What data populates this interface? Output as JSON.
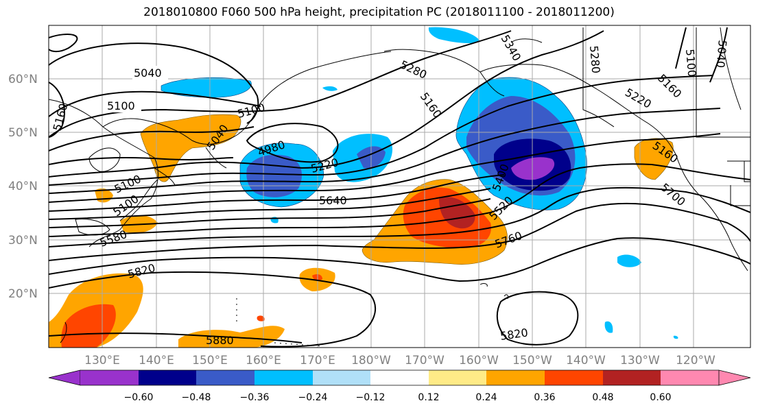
{
  "title": "2018010800 F060 500 hPa height, precipitation PC (2018011100 - 2018011200)",
  "map": {
    "lat_labels": [
      "60°N",
      "50°N",
      "40°N",
      "30°N",
      "20°N"
    ],
    "lon_labels": [
      "130°E",
      "140°E",
      "150°E",
      "160°E",
      "170°E",
      "180°W",
      "170°W",
      "160°W",
      "150°W",
      "140°W",
      "130°W",
      "120°W"
    ],
    "contour_labels": [
      "5040",
      "5100",
      "5160",
      "5100",
      "5040",
      "5100",
      "4980",
      "5220",
      "5100",
      "5640",
      "5340",
      "5280",
      "5160",
      "5280",
      "5100",
      "5040",
      "5220",
      "5160",
      "5580",
      "5400",
      "5520",
      "5160",
      "5700",
      "5760",
      "5820",
      "5820",
      "5880"
    ],
    "colors": {
      "m060": "#9932CC",
      "m048": "#00008B",
      "m036": "#3A5BC8",
      "m024": "#00BFFF",
      "m012": "#B0E0F8",
      "p012": "#FFEB87",
      "p024": "#FFA500",
      "p036": "#FF4500",
      "p048": "#B22222",
      "p060": "#FF88B0"
    }
  },
  "colorbar": {
    "labels": [
      "−0.60",
      "−0.48",
      "−0.36",
      "−0.24",
      "−0.12",
      "0.12",
      "0.24",
      "0.36",
      "0.48",
      "0.60"
    ],
    "colors": [
      "#9932CC",
      "#00008B",
      "#3A5BC8",
      "#00BFFF",
      "#B0E0F8",
      "#FFFFFF",
      "#FFEB87",
      "#FFA500",
      "#FF4500",
      "#B22222",
      "#FF88B0"
    ]
  }
}
